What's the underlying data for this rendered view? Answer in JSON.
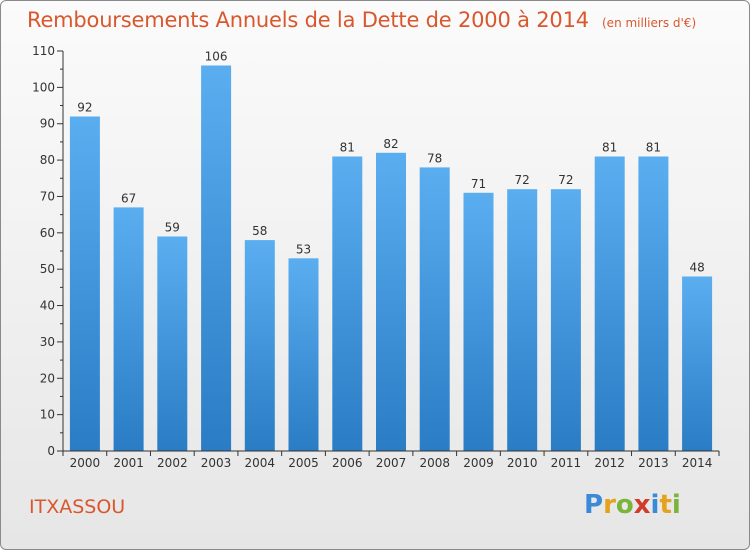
{
  "chart_data": {
    "type": "bar",
    "title": "Remboursements Annuels de la Dette de 2000 à 2014",
    "subtitle": "(en milliers d'€)",
    "categories": [
      "2000",
      "2001",
      "2002",
      "2003",
      "2004",
      "2005",
      "2006",
      "2007",
      "2008",
      "2009",
      "2010",
      "2011",
      "2012",
      "2013",
      "2014"
    ],
    "values": [
      92,
      67,
      59,
      106,
      58,
      53,
      81,
      82,
      78,
      71,
      72,
      72,
      81,
      81,
      48
    ],
    "ylim": [
      0,
      110
    ],
    "yticks": [
      0,
      10,
      20,
      30,
      40,
      50,
      60,
      70,
      80,
      90,
      100,
      110
    ],
    "xlabel": "",
    "ylabel": "",
    "grid": false,
    "bar_color": "#3b8fd6"
  },
  "footer": {
    "city": "ITXASSOU",
    "brand_letters": [
      "P",
      "r",
      "o",
      "x",
      "i",
      "t",
      "i"
    ],
    "brand_colors": [
      "#3a8ad8",
      "#e5a21d",
      "#7bb43a",
      "#d23a2a",
      "#3a8ad8",
      "#e5a21d",
      "#7bb43a"
    ]
  },
  "colors": {
    "accent": "#d9572d",
    "bar_light": "#5aaef0",
    "bar_dark": "#2a7cc4"
  }
}
